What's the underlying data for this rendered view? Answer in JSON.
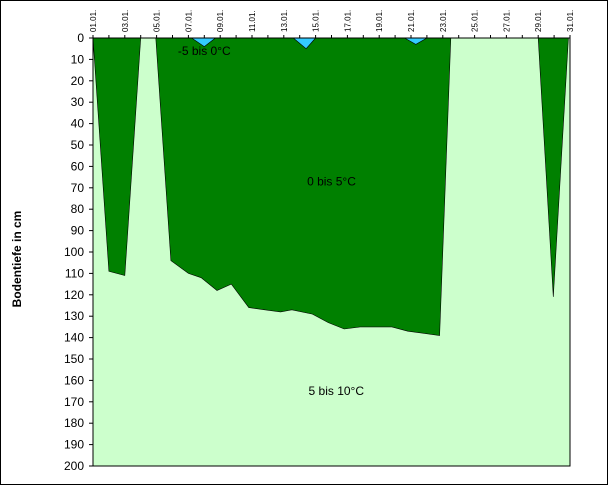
{
  "chart_data": {
    "type": "area",
    "ylabel": "Bodentiefe in cm",
    "ylim": [
      0,
      200
    ],
    "y_reversed": true,
    "y_ticks": [
      0,
      10,
      20,
      30,
      40,
      50,
      60,
      70,
      80,
      90,
      100,
      110,
      120,
      130,
      140,
      150,
      160,
      170,
      180,
      190,
      200
    ],
    "x_range": [
      1,
      31
    ],
    "x_ticks": [
      "01.01.",
      "03.01.",
      "05.01.",
      "07.01.",
      "09.01.",
      "11.01.",
      "13.01.",
      "15.01.",
      "17.01.",
      "19.01.",
      "21.01.",
      "23.01.",
      "25.01.",
      "27.01.",
      "29.01.",
      "31.01."
    ],
    "grid": false,
    "colors": {
      "band_0_5": "#008000",
      "band_5_10": "#ccffcc",
      "band_minus5_0": "#33ccff"
    },
    "zones": [
      {
        "label": "-5 bis 0°C",
        "x": 8.0,
        "y": 6
      },
      {
        "label": "0 bis 5°C",
        "x": 16.0,
        "y": 67
      },
      {
        "label": "5 bis 10°C",
        "x": 16.3,
        "y": 165
      }
    ],
    "series": [
      {
        "name": "0 bis 5°C",
        "color": "#008000",
        "x": [
          1.0,
          2.0,
          3.0,
          4.0,
          4.95,
          5.9,
          7.0,
          7.8,
          8.8,
          9.7,
          10.8,
          11.8,
          12.8,
          13.5,
          14.8,
          15.8,
          16.8,
          17.8,
          18.8,
          19.8,
          20.8,
          21.8,
          22.8,
          23.5,
          24.5,
          25.5,
          26.5,
          27.5,
          28.5,
          29.0,
          29.95,
          30.9
        ],
        "values": [
          0,
          109,
          111,
          0,
          0,
          104,
          110,
          112,
          118,
          115,
          126,
          127,
          128,
          127,
          129,
          133,
          136,
          135,
          135,
          135,
          137,
          138,
          139,
          0,
          0,
          0,
          0,
          0,
          0,
          0,
          121,
          0
        ]
      },
      {
        "name": "-5 bis 0°C",
        "color": "#33ccff",
        "bumps": [
          {
            "x": [
              7.2,
              8.0,
              8.7
            ],
            "values": [
              0,
              4,
              0
            ]
          },
          {
            "x": [
              13.6,
              14.4,
              15.0
            ],
            "values": [
              0,
              5,
              0
            ]
          },
          {
            "x": [
              20.6,
              21.3,
              22.0
            ],
            "values": [
              0,
              3,
              0
            ]
          }
        ]
      }
    ]
  }
}
